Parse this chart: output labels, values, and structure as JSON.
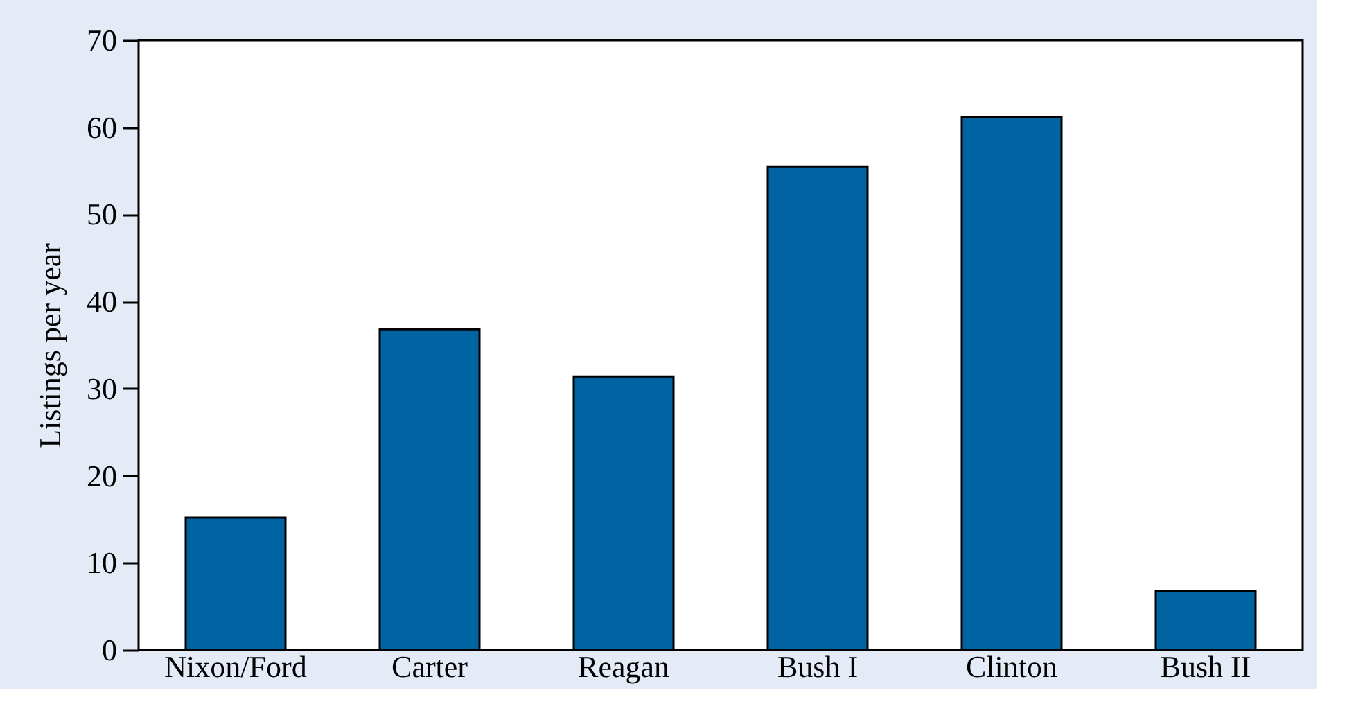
{
  "chart_data": {
    "type": "bar",
    "ylabel": "Listings per year",
    "categories": [
      "Nixon/Ford",
      "Carter",
      "Reagan",
      "Bush I",
      "Clinton",
      "Bush II"
    ],
    "values": [
      15.2,
      36.8,
      31.4,
      55.5,
      61.2,
      6.8
    ],
    "color": "#0064a3",
    "ylim": [
      0,
      70
    ],
    "yticks": [
      0,
      10,
      20,
      30,
      40,
      50,
      60,
      70
    ],
    "grid": false
  }
}
